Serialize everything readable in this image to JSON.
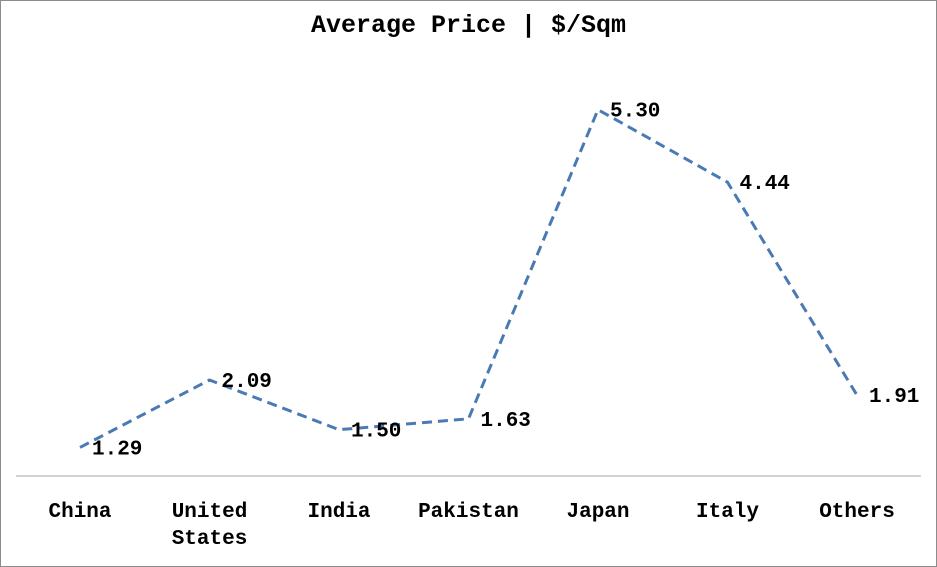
{
  "chart_data": {
    "type": "line",
    "title": "Average Price | $/Sqm",
    "categories": [
      [
        "China"
      ],
      [
        "United",
        "States"
      ],
      [
        "India"
      ],
      [
        "Pakistan"
      ],
      [
        "Japan"
      ],
      [
        "Italy"
      ],
      [
        "Others"
      ]
    ],
    "series": [
      {
        "values": [
          1.29,
          2.09,
          1.5,
          1.63,
          5.3,
          4.44,
          1.91
        ],
        "labels": [
          "1.29",
          "2.09",
          "1.50",
          "1.63",
          "5.30",
          "4.44",
          "1.91"
        ],
        "color": "#4a7ab4",
        "line_style": "dashed"
      }
    ],
    "ylim": [
      0,
      6.8
    ],
    "grid": false,
    "legend": "none",
    "axis_color": "#a6a6a6"
  }
}
